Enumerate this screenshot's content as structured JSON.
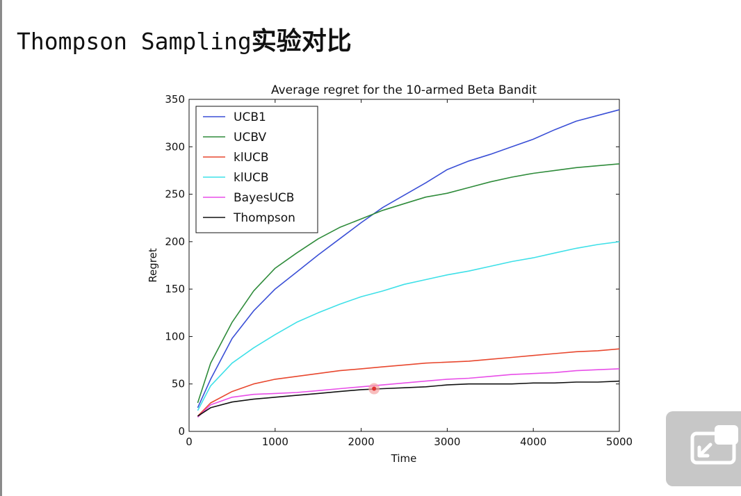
{
  "slide": {
    "title_prefix": "Thompson Sampling",
    "title_suffix": "实验对比"
  },
  "chart_data": {
    "type": "line",
    "title": "Average regret for the 10-armed Beta Bandit",
    "xlabel": "Time",
    "ylabel": "Regret",
    "xlim": [
      0,
      5000
    ],
    "ylim": [
      0,
      350
    ],
    "xticks": [
      0,
      1000,
      2000,
      3000,
      4000,
      5000
    ],
    "yticks": [
      0,
      50,
      100,
      150,
      200,
      250,
      300,
      350
    ],
    "grid": false,
    "legend_position": "top-left",
    "highlight_point": {
      "x": 2150,
      "y": 45
    },
    "series": [
      {
        "name": "UCB1",
        "color": "#3a4fd6",
        "x": [
          100,
          250,
          500,
          750,
          1000,
          1250,
          1500,
          1750,
          2000,
          2250,
          2500,
          2750,
          3000,
          3250,
          3500,
          3750,
          4000,
          4250,
          4500,
          4750,
          5000
        ],
        "y": [
          25,
          55,
          98,
          127,
          150,
          168,
          186,
          203,
          220,
          236,
          249,
          262,
          276,
          285,
          292,
          300,
          308,
          318,
          327,
          333,
          339
        ]
      },
      {
        "name": "UCBV",
        "color": "#2e8b3a",
        "x": [
          100,
          250,
          500,
          750,
          1000,
          1250,
          1500,
          1750,
          2000,
          2250,
          2500,
          2750,
          3000,
          3250,
          3500,
          3750,
          4000,
          4250,
          4500,
          4750,
          5000
        ],
        "y": [
          30,
          72,
          115,
          148,
          172,
          188,
          203,
          215,
          224,
          233,
          240,
          247,
          251,
          257,
          263,
          268,
          272,
          275,
          278,
          280,
          282
        ]
      },
      {
        "name": "klUCB",
        "color": "#e8472e",
        "x": [
          100,
          250,
          500,
          750,
          1000,
          1250,
          1500,
          1750,
          2000,
          2250,
          2500,
          2750,
          3000,
          3250,
          3500,
          3750,
          4000,
          4250,
          4500,
          4750,
          5000
        ],
        "y": [
          16,
          30,
          42,
          50,
          55,
          58,
          61,
          64,
          66,
          68,
          70,
          72,
          73,
          74,
          76,
          78,
          80,
          82,
          84,
          85,
          87
        ]
      },
      {
        "name": "klUCB",
        "color": "#3ee0e8",
        "x": [
          100,
          250,
          500,
          750,
          1000,
          1250,
          1500,
          1750,
          2000,
          2250,
          2500,
          2750,
          3000,
          3250,
          3500,
          3750,
          4000,
          4250,
          4500,
          4750,
          5000
        ],
        "y": [
          22,
          48,
          72,
          88,
          102,
          115,
          125,
          134,
          142,
          148,
          155,
          160,
          165,
          169,
          174,
          179,
          183,
          188,
          193,
          197,
          200
        ]
      },
      {
        "name": "BayesUCB",
        "color": "#e84ee8",
        "x": [
          100,
          250,
          500,
          750,
          1000,
          1250,
          1500,
          1750,
          2000,
          2250,
          2500,
          2750,
          3000,
          3250,
          3500,
          3750,
          4000,
          4250,
          4500,
          4750,
          5000
        ],
        "y": [
          15,
          28,
          36,
          39,
          40,
          41,
          43,
          45,
          47,
          49,
          51,
          53,
          55,
          56,
          58,
          60,
          61,
          62,
          64,
          65,
          66
        ]
      },
      {
        "name": "Thompson",
        "color": "#111111",
        "x": [
          100,
          250,
          500,
          750,
          1000,
          1250,
          1500,
          1750,
          2000,
          2250,
          2500,
          2750,
          3000,
          3250,
          3500,
          3750,
          4000,
          4250,
          4500,
          4750,
          5000
        ],
        "y": [
          16,
          25,
          31,
          34,
          36,
          38,
          40,
          42,
          44,
          45,
          46,
          47,
          49,
          50,
          50,
          50,
          51,
          51,
          52,
          52,
          53
        ]
      }
    ]
  }
}
